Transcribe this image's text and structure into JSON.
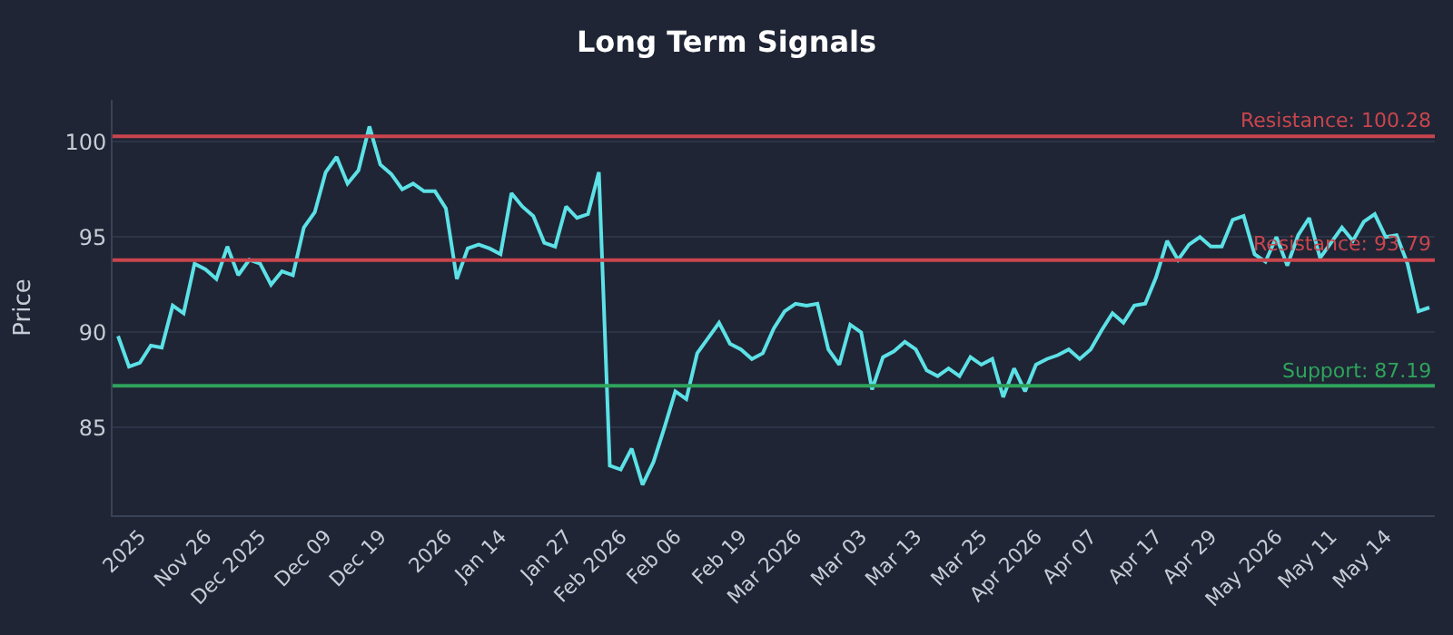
{
  "chart_data": {
    "type": "line",
    "title": "Long Term Signals",
    "ylabel": "Price",
    "categories": [
      null,
      null,
      "2025",
      null,
      null,
      null,
      null,
      null,
      "Nov 26",
      null,
      null,
      null,
      null,
      "Dec 2025",
      null,
      null,
      null,
      null,
      null,
      "Dec 09",
      null,
      null,
      null,
      null,
      "Dec 19",
      null,
      null,
      null,
      null,
      null,
      "2026",
      null,
      null,
      null,
      null,
      "Jan 14",
      null,
      null,
      null,
      null,
      null,
      "Jan 27",
      null,
      null,
      null,
      null,
      "Feb 2026",
      null,
      null,
      null,
      null,
      "Feb 06",
      null,
      null,
      null,
      null,
      null,
      "Feb 19",
      null,
      null,
      null,
      null,
      "Mar 2026",
      null,
      null,
      null,
      null,
      null,
      "Mar 03",
      null,
      null,
      null,
      null,
      "Mar 13",
      null,
      null,
      null,
      null,
      null,
      "Mar 25",
      null,
      null,
      null,
      null,
      "Apr 2026",
      null,
      null,
      null,
      null,
      "Apr 07",
      null,
      null,
      null,
      null,
      null,
      "Apr 17",
      null,
      null,
      null,
      null,
      "Apr 29",
      null,
      null,
      null,
      null,
      null,
      "May 2026",
      null,
      null,
      null,
      null,
      "May 11",
      null,
      null,
      null,
      null,
      "May 14",
      null,
      null,
      null,
      null
    ],
    "series": [
      {
        "color": "#5ce1e6",
        "values": [
          89.8,
          88.2,
          88.4,
          89.3,
          89.2,
          91.4,
          91.0,
          93.6,
          93.3,
          92.8,
          94.5,
          93.0,
          93.8,
          93.6,
          92.5,
          93.2,
          93.0,
          95.5,
          96.3,
          98.4,
          99.2,
          97.8,
          98.5,
          100.8,
          98.8,
          98.3,
          97.5,
          97.8,
          97.4,
          97.4,
          96.5,
          92.8,
          94.4,
          94.6,
          94.4,
          94.1,
          97.3,
          96.6,
          96.1,
          94.7,
          94.5,
          96.6,
          96.0,
          96.2,
          98.4,
          83.0,
          82.8,
          83.9,
          82.0,
          83.2,
          85.0,
          86.9,
          86.5,
          88.9,
          89.7,
          90.5,
          89.4,
          89.1,
          88.6,
          88.9,
          90.2,
          91.1,
          91.5,
          91.4,
          91.5,
          89.1,
          88.3,
          90.4,
          90.0,
          87.0,
          88.7,
          89.0,
          89.5,
          89.1,
          88.0,
          87.7,
          88.1,
          87.7,
          88.7,
          88.3,
          88.6,
          86.6,
          88.1,
          86.9,
          88.3,
          88.6,
          88.8,
          89.1,
          88.6,
          89.1,
          90.1,
          91.0,
          90.5,
          91.4,
          91.5,
          92.9,
          94.8,
          93.8,
          94.6,
          95.0,
          94.5,
          94.5,
          95.9,
          96.1,
          94.1,
          93.7,
          95.0,
          93.5,
          95.1,
          96.0,
          93.9,
          94.7,
          95.5,
          94.8,
          95.8,
          96.2,
          95.0,
          95.1,
          93.6,
          91.1,
          91.3
        ]
      }
    ],
    "ylim": [
      80.4,
      102.2
    ],
    "yticks": [
      85,
      90,
      95,
      100
    ],
    "grid": "y",
    "marker": "none",
    "line_style": "solid",
    "ref_lines": [
      {
        "axis": "y",
        "value": 100.28,
        "label": "Resistance: 100.28",
        "color": "#c9454d"
      },
      {
        "axis": "y",
        "value": 93.79,
        "label": "Resistance: 93.79",
        "color": "#c9454d"
      },
      {
        "axis": "y",
        "value": 87.19,
        "label": "Support: 87.19",
        "color": "#2fa35c"
      }
    ]
  }
}
